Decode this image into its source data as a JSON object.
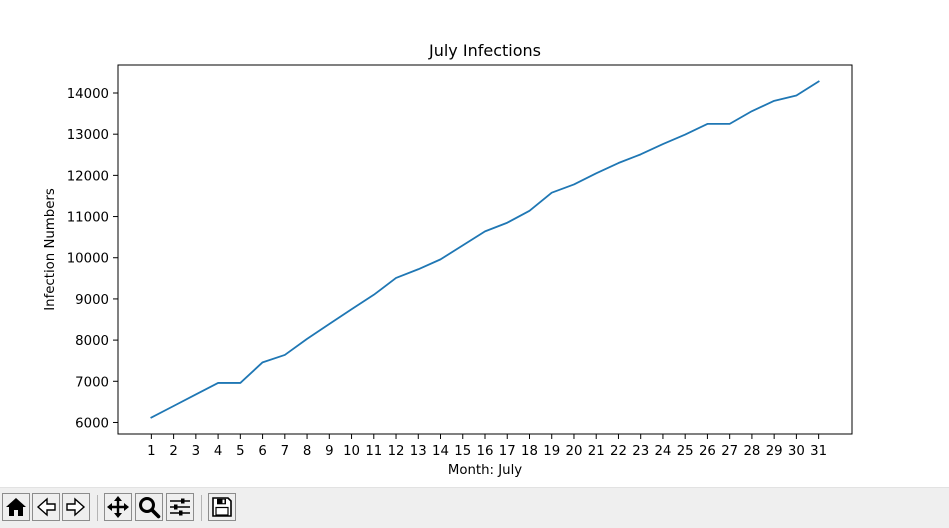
{
  "colors": {
    "line": "#1f77b4",
    "toolbar_bg": "#efefef"
  },
  "toolbar": {
    "buttons": [
      {
        "name": "home",
        "icon": "home-icon"
      },
      {
        "name": "back",
        "icon": "back-arrow-icon"
      },
      {
        "name": "forward",
        "icon": "forward-arrow-icon"
      },
      {
        "name": "pan",
        "icon": "pan-move-icon"
      },
      {
        "name": "zoom",
        "icon": "zoom-magnifier-icon"
      },
      {
        "name": "configure-subplots",
        "icon": "sliders-icon"
      },
      {
        "name": "save",
        "icon": "floppy-disk-icon"
      }
    ]
  },
  "chart_data": {
    "type": "line",
    "title": "July Infections",
    "xlabel": "Month: July",
    "ylabel": "Infection Numbers",
    "x": [
      1,
      2,
      3,
      4,
      5,
      6,
      7,
      8,
      9,
      10,
      11,
      12,
      13,
      14,
      15,
      16,
      17,
      18,
      19,
      20,
      21,
      22,
      23,
      24,
      25,
      26,
      27,
      28,
      29,
      30,
      31
    ],
    "x_tick_labels": [
      "1",
      "2",
      "3",
      "4",
      "5",
      "6",
      "7",
      "8",
      "9",
      "10",
      "11",
      "12",
      "13",
      "14",
      "15",
      "16",
      "17",
      "18",
      "19",
      "20",
      "21",
      "22",
      "23",
      "24",
      "25",
      "26",
      "27",
      "28",
      "29",
      "30",
      "31"
    ],
    "series": [
      {
        "values": [
          6120,
          6400,
          6680,
          6960,
          6960,
          7460,
          7640,
          8030,
          8390,
          8750,
          9100,
          9510,
          9720,
          9960,
          10300,
          10640,
          10850,
          11140,
          11580,
          11780,
          12050,
          12300,
          12510,
          12760,
          12990,
          13250,
          13250,
          13560,
          13810,
          13940,
          14280
        ]
      }
    ],
    "y_ticks": [
      6000,
      7000,
      8000,
      9000,
      10000,
      11000,
      12000,
      13000,
      14000
    ],
    "y_tick_labels": [
      "6000",
      "7000",
      "8000",
      "9000",
      "10000",
      "11000",
      "12000",
      "13000",
      "14000"
    ],
    "xlim": [
      -0.5,
      32.5
    ],
    "ylim": [
      5720,
      14680
    ],
    "grid": false,
    "legend": "none"
  }
}
